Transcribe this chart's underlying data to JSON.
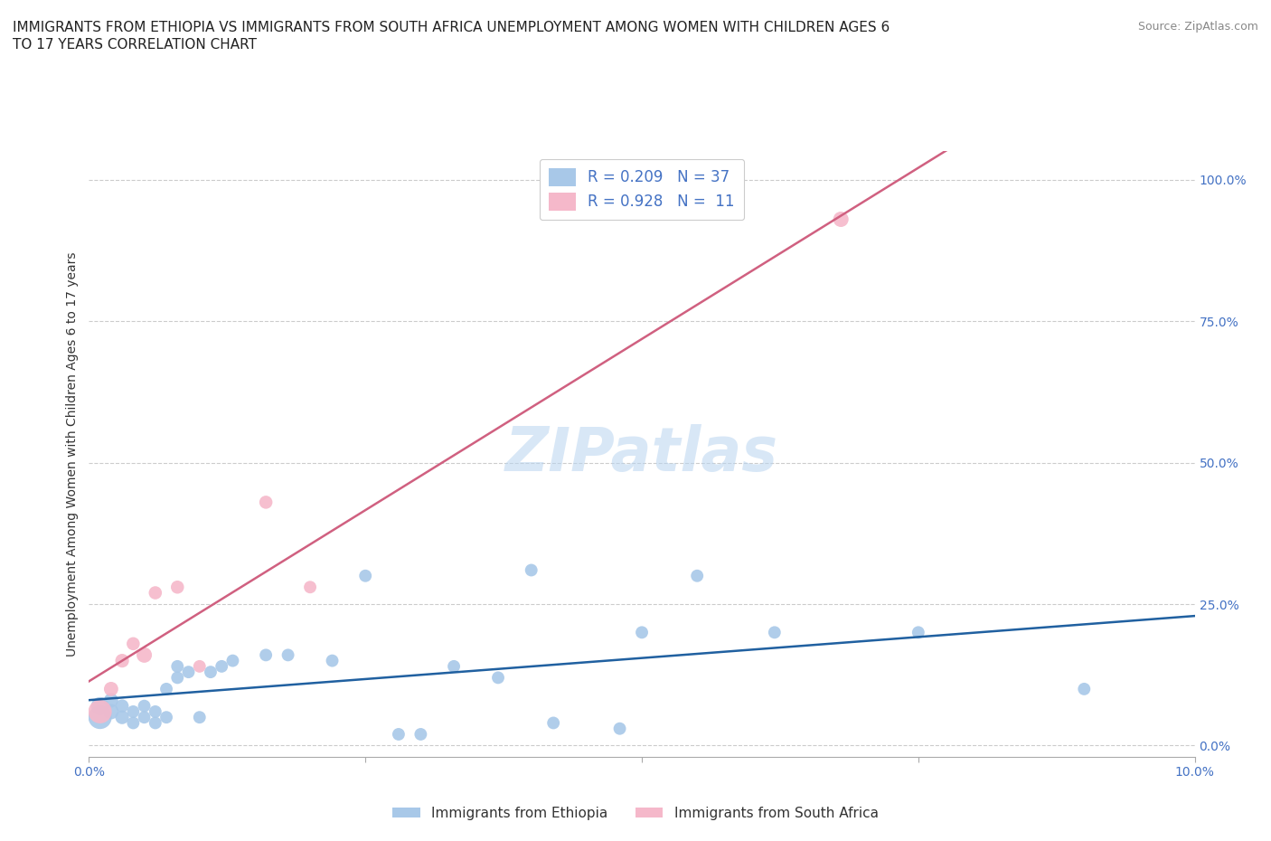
{
  "title_line1": "IMMIGRANTS FROM ETHIOPIA VS IMMIGRANTS FROM SOUTH AFRICA UNEMPLOYMENT AMONG WOMEN WITH CHILDREN AGES 6",
  "title_line2": "TO 17 YEARS CORRELATION CHART",
  "source": "Source: ZipAtlas.com",
  "ylabel": "Unemployment Among Women with Children Ages 6 to 17 years",
  "watermark": "ZIPatlas",
  "ethiopia_R": 0.209,
  "ethiopia_N": 37,
  "sa_R": 0.928,
  "sa_N": 11,
  "ethiopia_color": "#a8c8e8",
  "sa_color": "#f5b8ca",
  "ethiopia_line_color": "#2060a0",
  "sa_line_color": "#d06080",
  "ethiopia_points_x": [
    0.001,
    0.001,
    0.002,
    0.002,
    0.003,
    0.003,
    0.004,
    0.004,
    0.005,
    0.005,
    0.006,
    0.006,
    0.007,
    0.007,
    0.008,
    0.008,
    0.009,
    0.01,
    0.011,
    0.012,
    0.013,
    0.016,
    0.018,
    0.022,
    0.025,
    0.028,
    0.03,
    0.033,
    0.037,
    0.04,
    0.042,
    0.048,
    0.05,
    0.055,
    0.062,
    0.075,
    0.09
  ],
  "ethiopia_points_y": [
    0.05,
    0.07,
    0.06,
    0.08,
    0.05,
    0.07,
    0.04,
    0.06,
    0.05,
    0.07,
    0.04,
    0.06,
    0.05,
    0.1,
    0.12,
    0.14,
    0.13,
    0.05,
    0.13,
    0.14,
    0.15,
    0.16,
    0.16,
    0.15,
    0.3,
    0.02,
    0.02,
    0.14,
    0.12,
    0.31,
    0.04,
    0.03,
    0.2,
    0.3,
    0.2,
    0.2,
    0.1
  ],
  "ethiopia_sizes": [
    350,
    200,
    150,
    130,
    120,
    110,
    100,
    100,
    100,
    100,
    100,
    100,
    100,
    100,
    100,
    100,
    100,
    100,
    100,
    100,
    100,
    100,
    100,
    100,
    100,
    100,
    100,
    100,
    100,
    100,
    100,
    100,
    100,
    100,
    100,
    100,
    100
  ],
  "sa_points_x": [
    0.001,
    0.002,
    0.003,
    0.004,
    0.005,
    0.006,
    0.008,
    0.01,
    0.016,
    0.02,
    0.068
  ],
  "sa_points_y": [
    0.06,
    0.1,
    0.15,
    0.18,
    0.16,
    0.27,
    0.28,
    0.14,
    0.43,
    0.28,
    0.93
  ],
  "sa_sizes": [
    350,
    130,
    120,
    110,
    150,
    110,
    110,
    100,
    110,
    100,
    150
  ],
  "xlim": [
    0,
    0.1
  ],
  "ylim": [
    -0.02,
    1.05
  ],
  "yticks": [
    0,
    0.25,
    0.5,
    0.75,
    1.0
  ],
  "ytick_labels": [
    "0.0%",
    "25.0%",
    "50.0%",
    "75.0%",
    "100.0%"
  ],
  "xtick_positions": [
    0.0,
    0.025,
    0.05,
    0.075,
    0.1
  ],
  "xtick_labels": [
    "0.0%",
    "",
    "",
    "",
    "10.0%"
  ],
  "grid_color": "#cccccc",
  "bg_color": "#ffffff",
  "title_fontsize": 11,
  "label_fontsize": 10,
  "tick_fontsize": 10,
  "legend_fontsize": 12,
  "axis_color": "#4472c4",
  "title_color": "#222222",
  "source_color": "#888888",
  "ylabel_color": "#333333"
}
